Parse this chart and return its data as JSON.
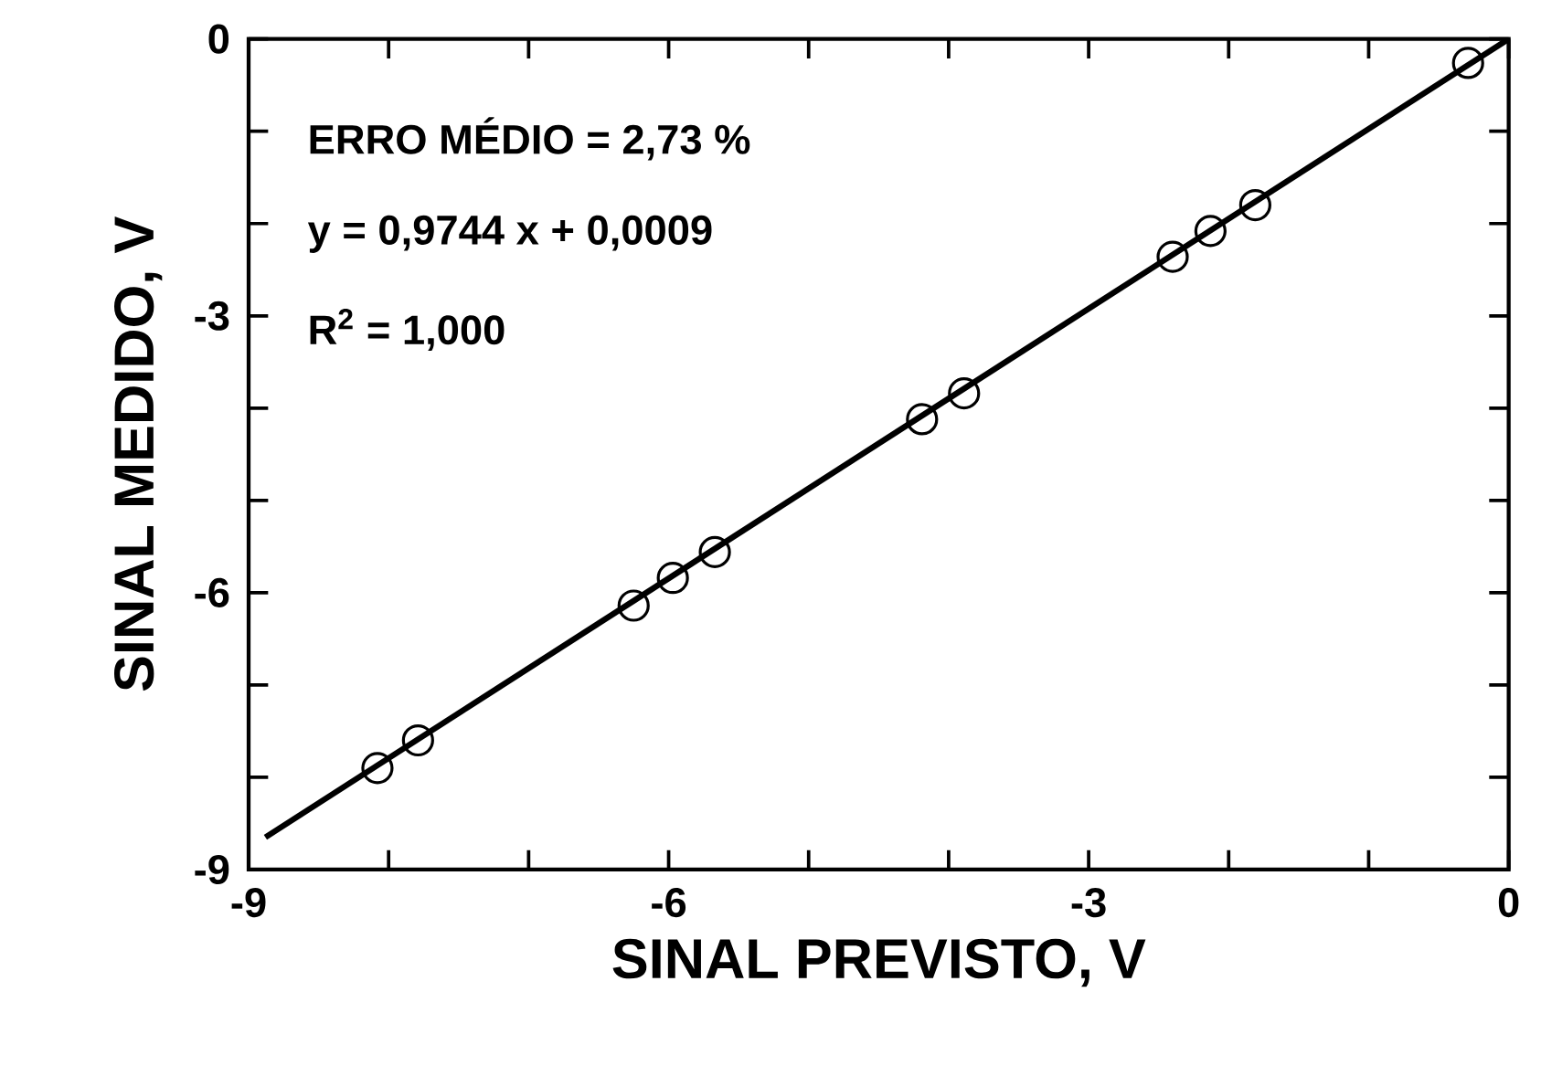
{
  "chart_data": {
    "type": "scatter",
    "xlabel": "SINAL PREVISTO, V",
    "ylabel": "SINAL MEDIDO, V",
    "annotations": [
      "ERRO MÉDIO = 2,73 %",
      "y = 0,9744 x + 0,0009",
      "R$^{2}$ = 1,000"
    ],
    "xlim": [
      -9,
      0
    ],
    "ylim": [
      -9,
      0
    ],
    "xticks": [
      -9,
      {
        "value": -8,
        "label": null
      },
      {
        "value": -7,
        "label": null
      },
      -6,
      {
        "value": -5,
        "label": null
      },
      {
        "value": -4,
        "label": null
      },
      -3,
      {
        "value": -2,
        "label": null
      },
      {
        "value": -1,
        "label": null
      },
      0
    ],
    "yticks": [
      -9,
      {
        "value": -8,
        "label": null
      },
      {
        "value": -7,
        "label": null
      },
      -6,
      {
        "value": -5,
        "label": null
      },
      {
        "value": -4,
        "label": null
      },
      -3,
      {
        "value": -2,
        "label": null
      },
      {
        "value": -1,
        "label": null
      },
      0
    ],
    "grid": false,
    "marker": "circle",
    "x": [
      -8.08,
      -7.79,
      -6.25,
      -5.97,
      -5.67,
      -4.19,
      -3.89,
      -2.4,
      -2.13,
      -1.81,
      -0.29
    ],
    "series": [
      {
        "color": "#000000",
        "values": [
          -7.9,
          -7.6,
          -6.14,
          -5.84,
          -5.56,
          -4.12,
          -3.84,
          -2.36,
          -2.08,
          -1.8,
          -0.26
        ]
      },
      {
        "type": "line",
        "color": "#000000",
        "x": [
          -8.88,
          0
        ],
        "values": [
          -8.65,
          0
        ],
        "marker": "none",
        "line_style": "solid"
      }
    ]
  }
}
